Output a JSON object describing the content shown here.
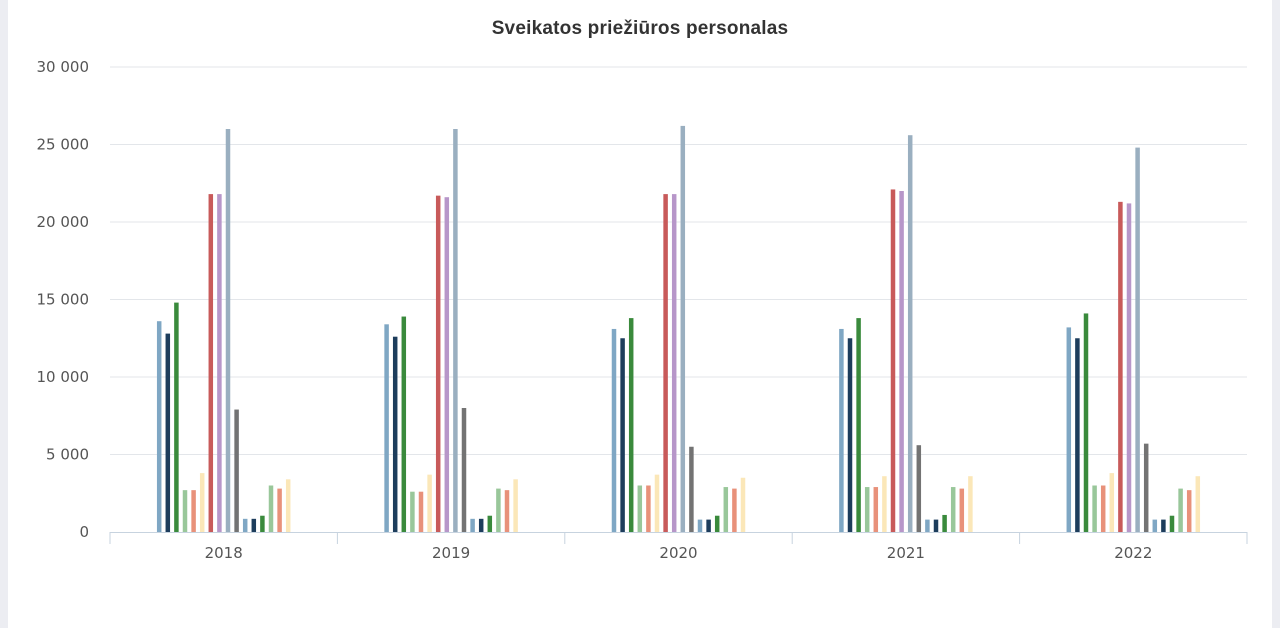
{
  "chart_data": {
    "type": "bar",
    "title": "Sveikatos priežiūros personalas",
    "xlabel": "",
    "ylabel": "",
    "categories": [
      "2018",
      "2019",
      "2020",
      "2021",
      "2022"
    ],
    "ylim": [
      0,
      30000
    ],
    "yticks": [
      0,
      5000,
      10000,
      15000,
      20000,
      25000,
      30000
    ],
    "ytick_labels": [
      "0",
      "5 000",
      "10 000",
      "15 000",
      "20 000",
      "25 000",
      "30 000"
    ],
    "grid": true,
    "legend": "none",
    "series": [
      {
        "color": "#7fa7c4",
        "values": [
          13600,
          13400,
          13100,
          13100,
          13200
        ]
      },
      {
        "color": "#1d3d5c",
        "values": [
          12800,
          12600,
          12500,
          12500,
          12500
        ]
      },
      {
        "color": "#3a8a3c",
        "values": [
          14800,
          13900,
          13800,
          13800,
          14100
        ]
      },
      {
        "color": "#99c79a",
        "values": [
          2700,
          2600,
          3000,
          2900,
          3000
        ]
      },
      {
        "color": "#e8917a",
        "values": [
          2700,
          2600,
          3000,
          2900,
          3000
        ]
      },
      {
        "color": "#fbe7b8",
        "values": [
          3800,
          3700,
          3700,
          3600,
          3800
        ]
      },
      {
        "color": "#c85a5a",
        "values": [
          21800,
          21700,
          21800,
          22100,
          21300
        ]
      },
      {
        "color": "#b796c9",
        "values": [
          21800,
          21600,
          21800,
          22000,
          21200
        ]
      },
      {
        "color": "#9aafc0",
        "values": [
          26000,
          26000,
          26200,
          25600,
          24800
        ]
      },
      {
        "color": "#737373",
        "values": [
          7900,
          8000,
          5500,
          5600,
          5700
        ]
      },
      {
        "color": "#7fa7c4",
        "values": [
          850,
          850,
          800,
          800,
          800
        ]
      },
      {
        "color": "#1d3d5c",
        "values": [
          850,
          850,
          800,
          800,
          800
        ]
      },
      {
        "color": "#3a8a3c",
        "values": [
          1050,
          1050,
          1050,
          1100,
          1050
        ]
      },
      {
        "color": "#99c79a",
        "values": [
          3000,
          2800,
          2900,
          2900,
          2800
        ]
      },
      {
        "color": "#e8917a",
        "values": [
          2800,
          2700,
          2800,
          2800,
          2700
        ]
      },
      {
        "color": "#fbe7b8",
        "values": [
          3400,
          3400,
          3500,
          3600,
          3600
        ]
      }
    ]
  }
}
